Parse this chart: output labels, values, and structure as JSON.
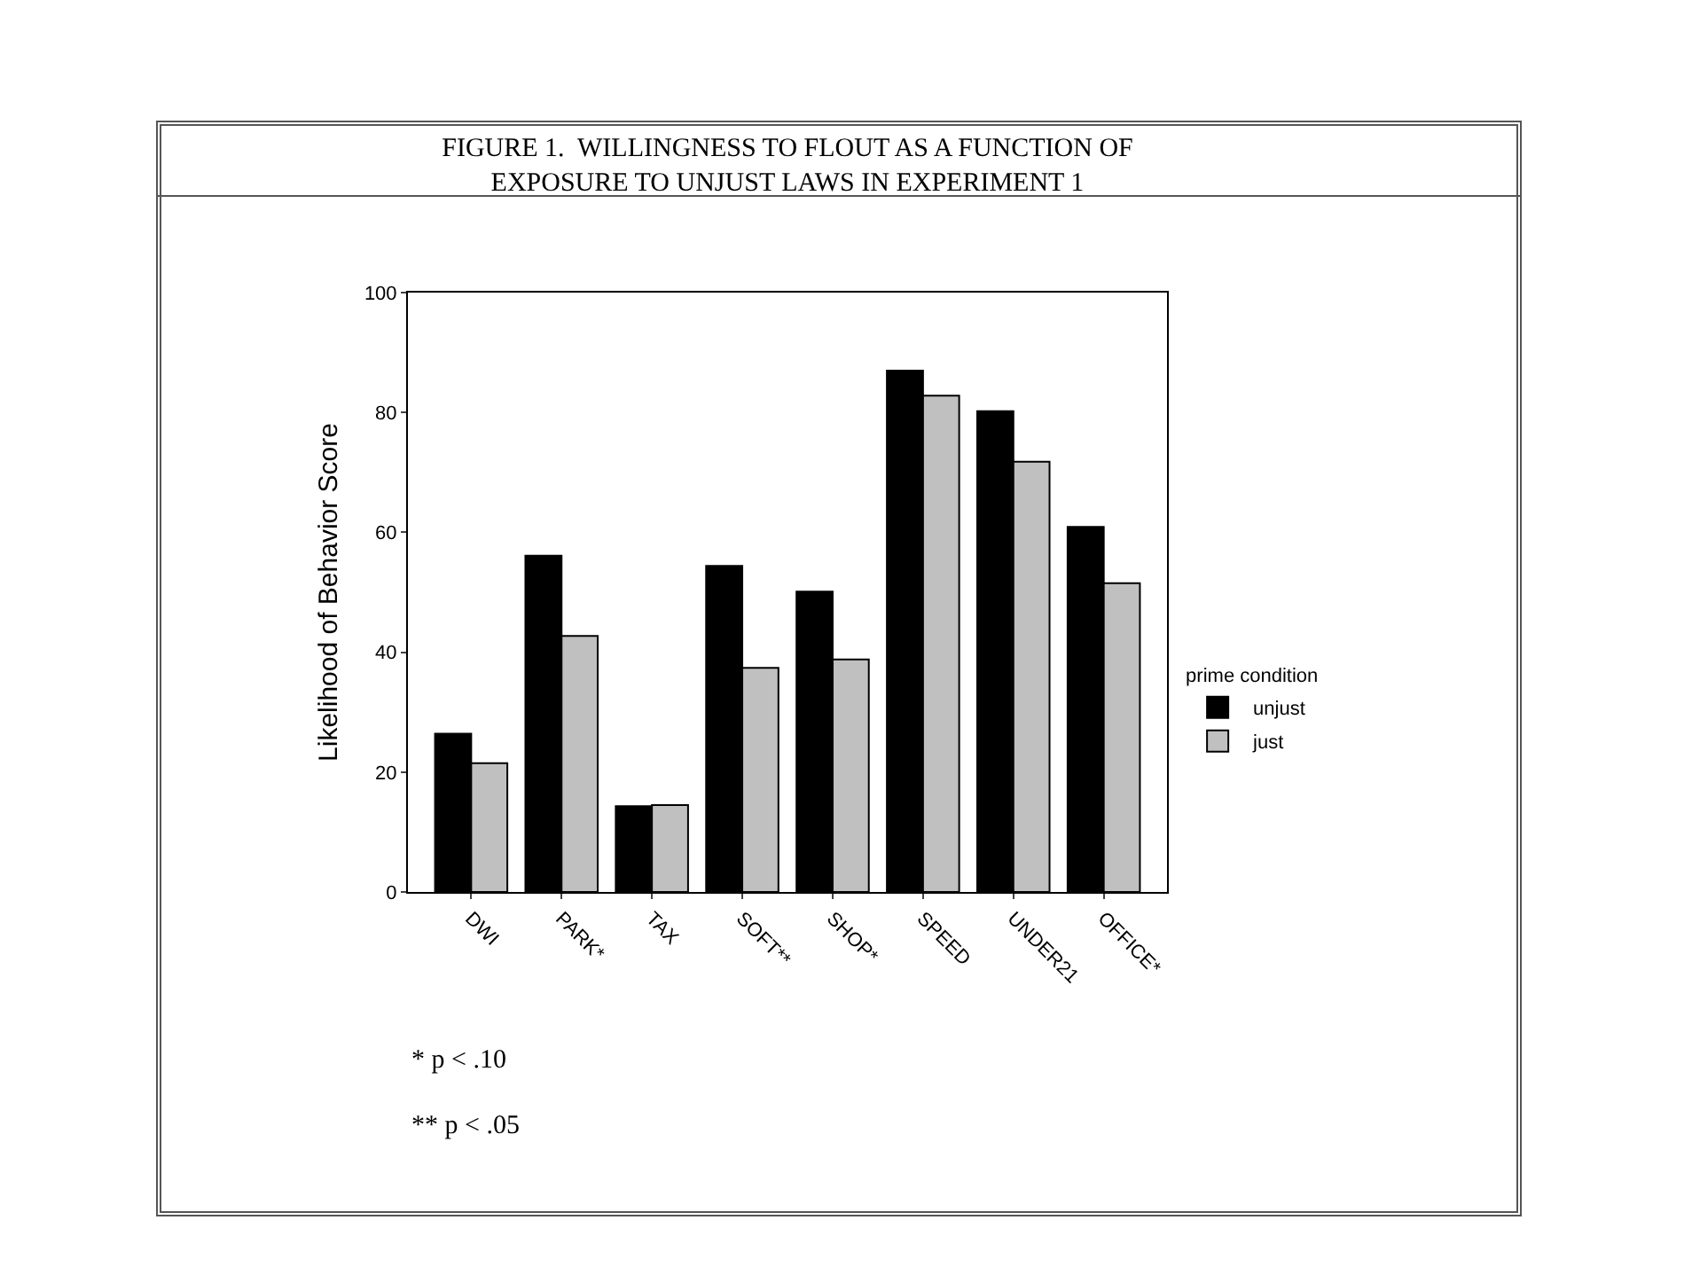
{
  "chart_data": {
    "type": "bar",
    "title": "FIGURE 1.  WILLINGNESS TO FLOUT AS A FUNCTION OF\nEXPOSURE TO UNJUST LAWS IN EXPERIMENT 1",
    "ylabel": "Likelihood of Behavior Score",
    "legend_title": "prime condition",
    "categories": [
      "DWI",
      "PARK*",
      "TAX",
      "SOFT**",
      "SHOP*",
      "SPEED",
      "UNDER21",
      "OFFICE*"
    ],
    "series": [
      {
        "name": "unjust",
        "color": "#000000",
        "values": [
          26.4,
          56.1,
          14.3,
          54.4,
          50.1,
          87.0,
          80.2,
          60.9
        ]
      },
      {
        "name": "just",
        "color": "#c0c0c0",
        "values": [
          21.5,
          42.7,
          14.5,
          37.4,
          38.8,
          82.8,
          71.8,
          51.5
        ]
      }
    ],
    "ylim": [
      0,
      100
    ],
    "yticks": [
      0,
      20,
      40,
      60,
      80,
      100
    ],
    "grid": false,
    "legend": "right",
    "annotations": [
      "* p < .10",
      "** p < .05"
    ]
  }
}
